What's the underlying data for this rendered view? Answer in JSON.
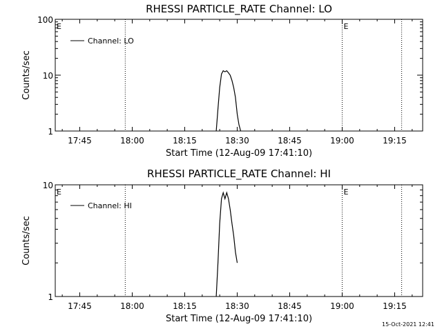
{
  "footer": {
    "timestamp": "15-Oct-2021 12:41"
  },
  "chart_data": [
    {
      "type": "line",
      "title": "RHESSI PARTICLE_RATE Channel: LO",
      "xlabel": "Start Time (12-Aug-09 17:41:10)",
      "ylabel": "Counts/sec",
      "yscale": "log",
      "ylim": [
        1,
        100
      ],
      "xlim": [
        "17:38",
        "19:23"
      ],
      "x_ticks": [
        "17:45",
        "18:00",
        "18:15",
        "18:30",
        "18:45",
        "19:00",
        "19:15"
      ],
      "y_ticks": [
        "1",
        "10",
        "100"
      ],
      "legend": {
        "position": "top-left",
        "entries": [
          "Channel: LO"
        ]
      },
      "markers": [
        {
          "label": "E",
          "time": "17:38"
        },
        {
          "label": "",
          "time": "17:58"
        },
        {
          "label": "E",
          "time": "19:00"
        },
        {
          "label": "",
          "time": "19:17"
        }
      ],
      "series": [
        {
          "name": "Channel: LO",
          "x": [
            "18:24:00",
            "18:24:30",
            "18:25:00",
            "18:25:30",
            "18:26:00",
            "18:26:30",
            "18:27:00",
            "18:27:30",
            "18:28:00",
            "18:28:30",
            "18:29:00",
            "18:29:30",
            "18:30:00",
            "18:30:30",
            "18:31:00"
          ],
          "values": [
            1.0,
            2.5,
            6.0,
            10.5,
            12.0,
            11.5,
            12.0,
            11.0,
            10.0,
            8.0,
            6.0,
            4.0,
            2.0,
            1.3,
            1.0
          ]
        }
      ]
    },
    {
      "type": "line",
      "title": "RHESSI PARTICLE_RATE Channel: HI",
      "xlabel": "Start Time (12-Aug-09 17:41:10)",
      "ylabel": "Counts/sec",
      "yscale": "log",
      "ylim": [
        1,
        10
      ],
      "xlim": [
        "17:38",
        "19:23"
      ],
      "x_ticks": [
        "17:45",
        "18:00",
        "18:15",
        "18:30",
        "18:45",
        "19:00",
        "19:15"
      ],
      "y_ticks": [
        "1",
        "10"
      ],
      "legend": {
        "position": "top-left",
        "entries": [
          "Channel: HI"
        ]
      },
      "markers": [
        {
          "label": "E",
          "time": "17:38"
        },
        {
          "label": "",
          "time": "17:58"
        },
        {
          "label": "E",
          "time": "19:00"
        },
        {
          "label": "",
          "time": "19:17"
        }
      ],
      "series": [
        {
          "name": "Channel: HI",
          "x": [
            "18:24:00",
            "18:24:30",
            "18:25:00",
            "18:25:30",
            "18:26:00",
            "18:26:30",
            "18:27:00",
            "18:27:30",
            "18:28:00",
            "18:28:30",
            "18:29:00",
            "18:29:30",
            "18:30:00"
          ],
          "values": [
            1.0,
            2.0,
            4.5,
            7.5,
            8.5,
            7.5,
            8.5,
            7.5,
            6.0,
            4.5,
            3.5,
            2.5,
            2.0
          ]
        }
      ]
    }
  ]
}
